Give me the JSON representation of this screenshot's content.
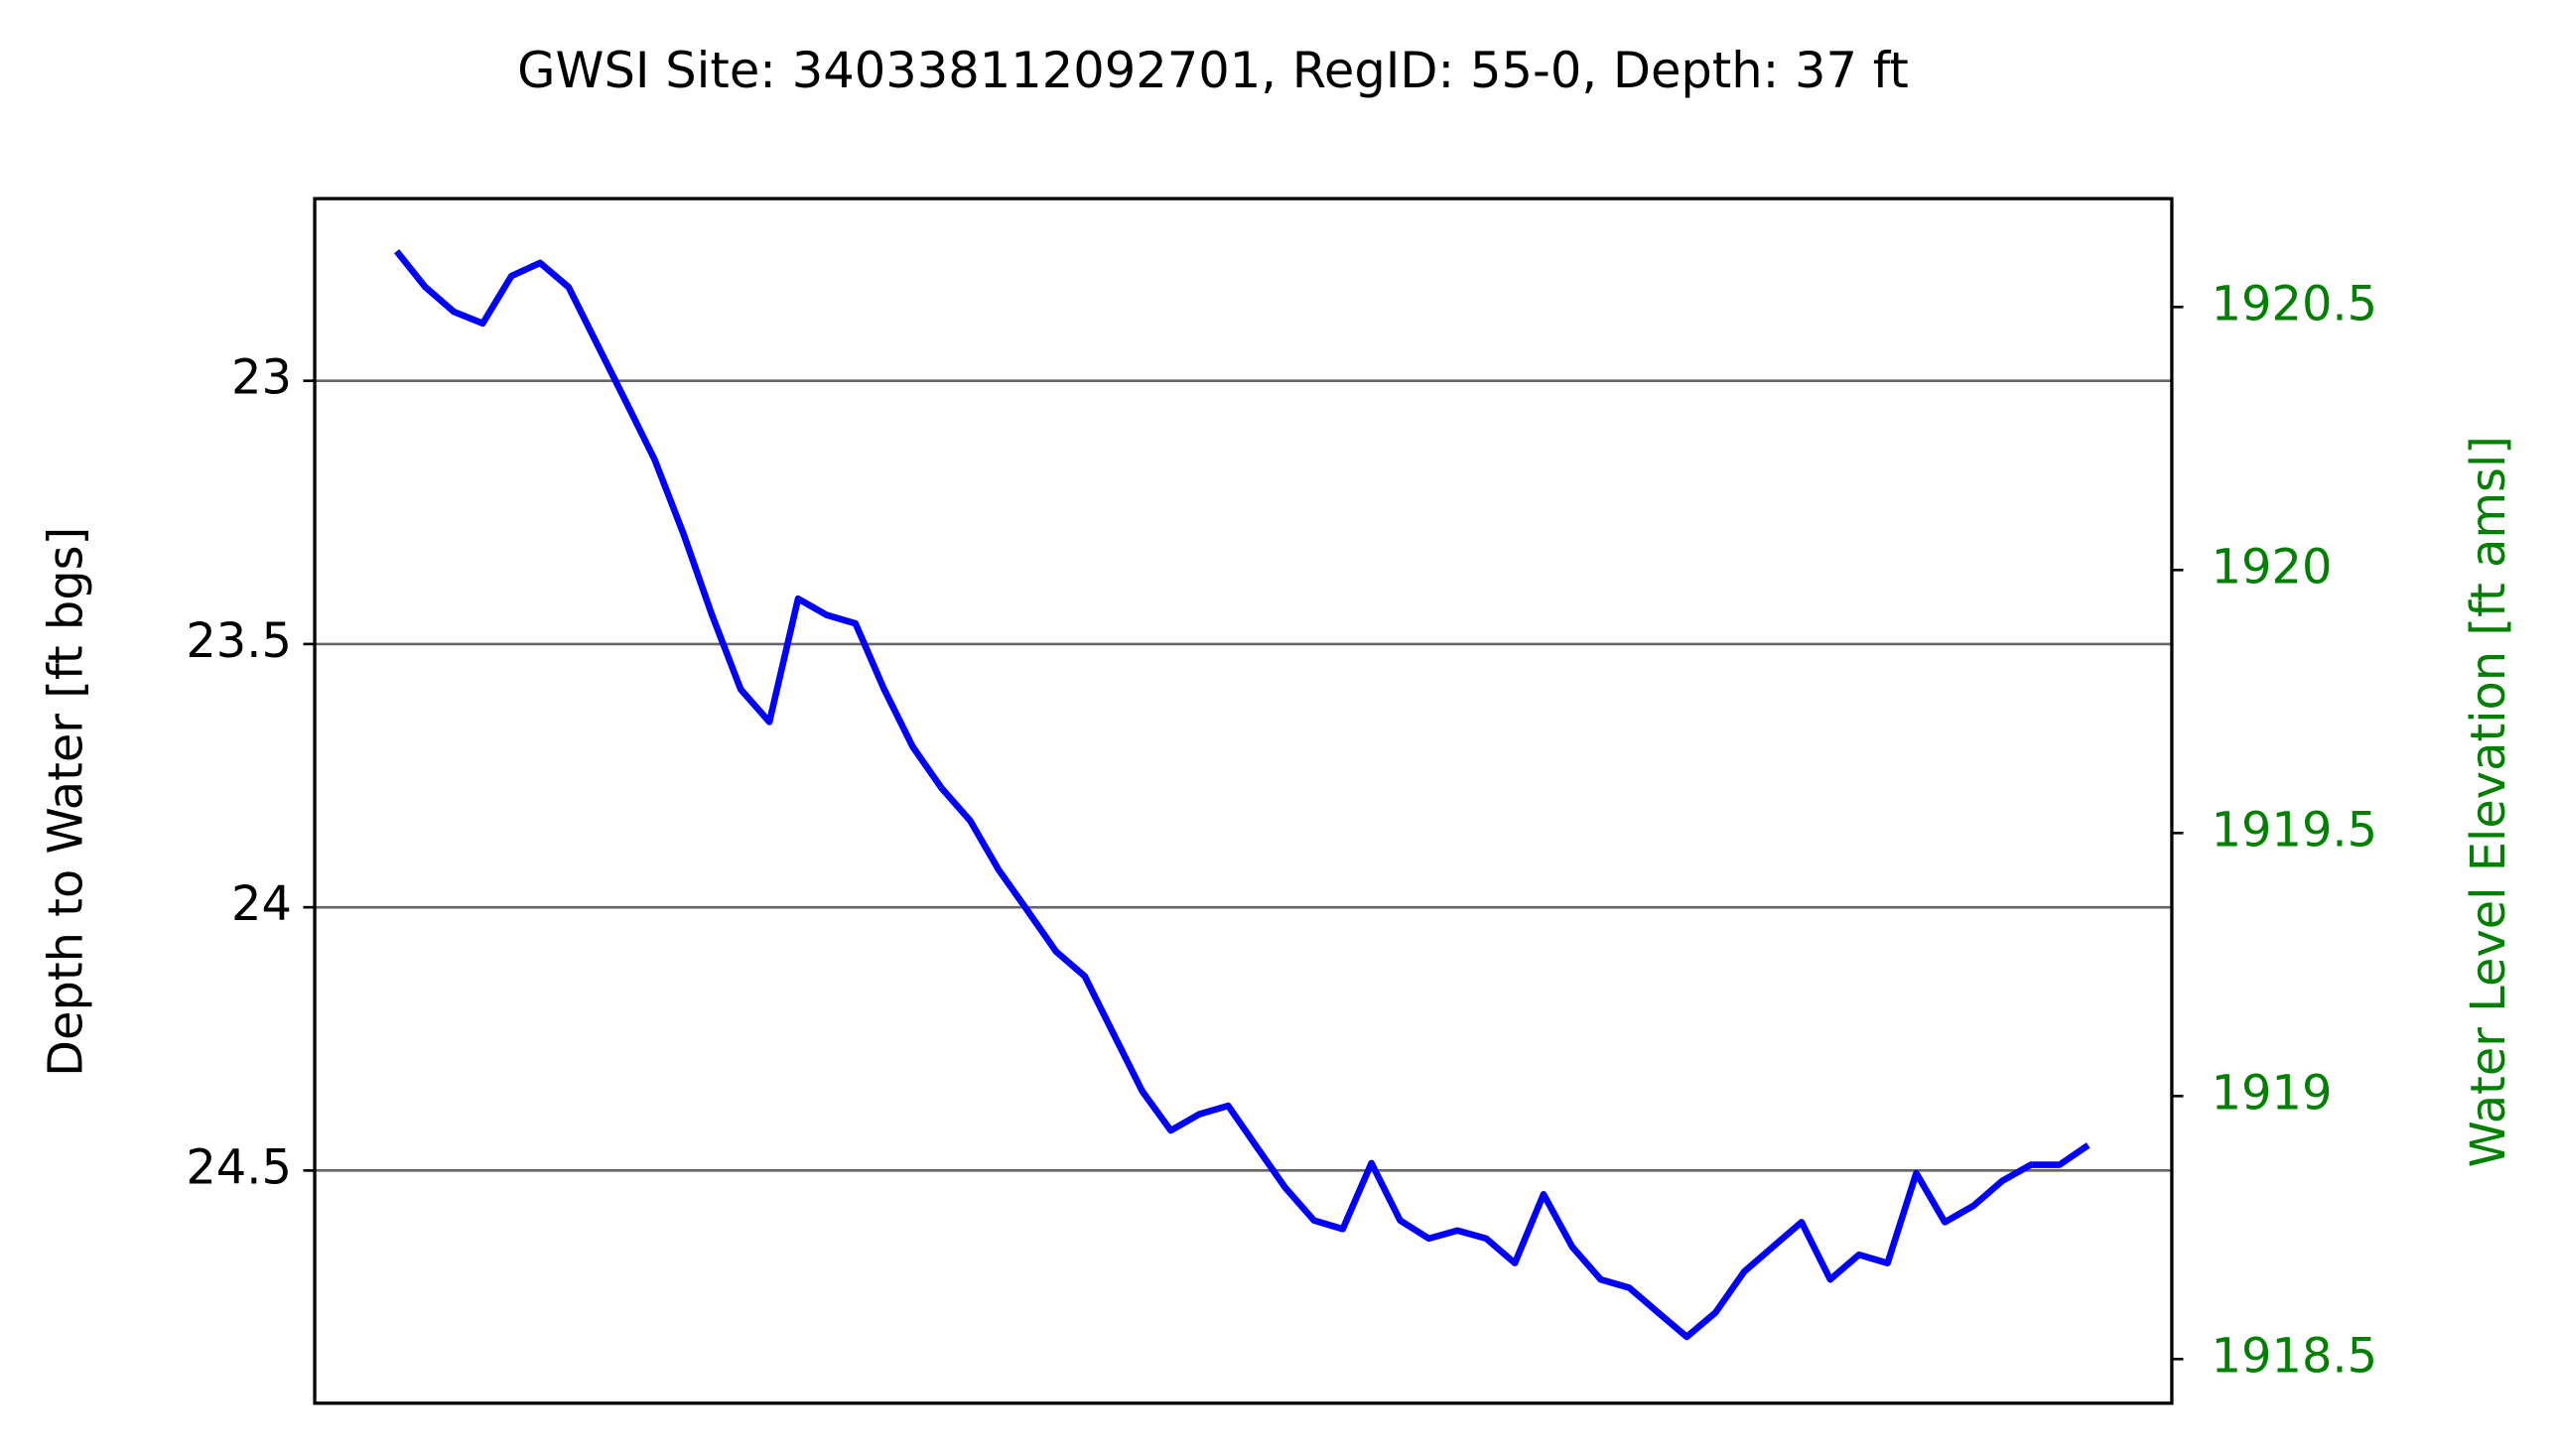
{
  "chart_data": {
    "type": "line",
    "title": "GWSI Site: 340338112092701, RegID: 55-0, Depth: 37 ft",
    "ylabel": "Depth to Water [ft bgs]",
    "y2label": "Water Level Elevation [ft amsl]",
    "ylim": [
      24.942,
      22.654
    ],
    "yticks": [
      23.0,
      23.5,
      24.0,
      24.5
    ],
    "y2lim": [
      1918.416,
      1920.706
    ],
    "y2ticks": [
      1918.5,
      1919.0,
      1919.5,
      1920.0,
      1920.5
    ],
    "y2color": "#008000",
    "grid": true,
    "series": [
      {
        "name": "Depth to Water",
        "color": "#0000ff",
        "values": [
          22.754,
          22.822,
          22.869,
          22.891,
          22.801,
          22.776,
          22.822,
          22.931,
          23.04,
          23.15,
          23.29,
          23.445,
          23.586,
          23.648,
          23.414,
          23.445,
          23.461,
          23.586,
          23.695,
          23.773,
          23.835,
          23.929,
          24.006,
          24.084,
          24.131,
          24.24,
          24.349,
          24.424,
          24.393,
          24.377,
          24.455,
          24.533,
          24.595,
          24.611,
          24.486,
          24.595,
          24.629,
          24.614,
          24.629,
          24.676,
          24.545,
          24.645,
          24.707,
          24.723,
          24.77,
          24.816,
          24.77,
          24.692,
          24.645,
          24.598,
          24.707,
          24.66,
          24.676,
          24.505,
          24.598,
          24.567,
          24.52,
          24.489,
          24.489,
          24.452
        ]
      }
    ]
  }
}
